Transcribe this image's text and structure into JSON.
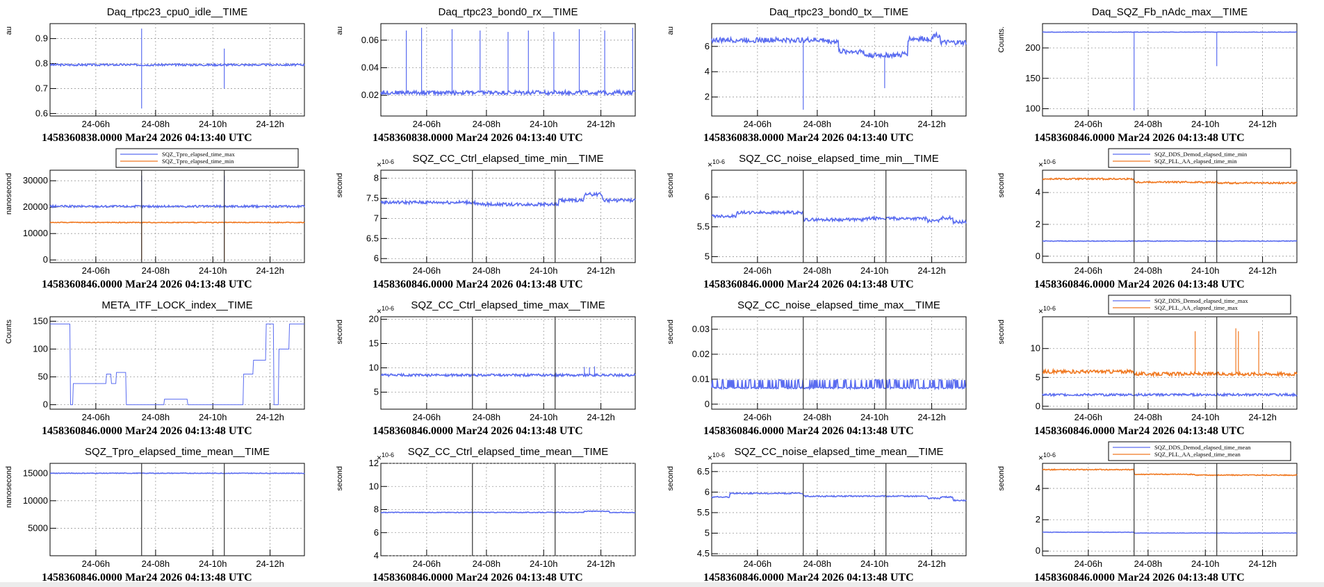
{
  "chart_data": [
    {
      "type": "line",
      "title": "Daq_rtpc23_cpu0_idle__TIME",
      "ylabel": "au",
      "footer": "1458360838.0000 Mar24 2026 04:13:40 UTC",
      "xticks": [
        "24-06h",
        "24-08h",
        "24-10h",
        "24-12h"
      ],
      "yticks": [
        "0.6",
        "0.7",
        "0.8",
        "0.9"
      ],
      "ylim": [
        0.59,
        0.96
      ],
      "exponent": "",
      "series": [
        {
          "color": "#5a6cf0",
          "base": 0.795,
          "noise": 0.004,
          "spikes": [
            [
              0.36,
              0.62
            ],
            [
              0.36,
              0.94
            ],
            [
              0.685,
              0.7
            ],
            [
              0.685,
              0.86
            ]
          ]
        }
      ]
    },
    {
      "type": "line",
      "title": "Daq_rtpc23_bond0_rx__TIME",
      "ylabel": "au",
      "footer": "1458360838.0000 Mar24 2026 04:13:40 UTC",
      "xticks": [
        "24-06h",
        "24-08h",
        "24-10h",
        "24-12h"
      ],
      "yticks": [
        "0.02",
        "0.04",
        "0.06"
      ],
      "ylim": [
        0.005,
        0.072
      ],
      "exponent": "",
      "series": [
        {
          "color": "#5a6cf0",
          "base": 0.022,
          "noise": 0.0015,
          "spikes": [
            [
              0.1,
              0.067
            ],
            [
              0.16,
              0.069
            ],
            [
              0.28,
              0.068
            ],
            [
              0.39,
              0.067
            ],
            [
              0.5,
              0.066
            ],
            [
              0.58,
              0.067
            ],
            [
              0.68,
              0.066
            ],
            [
              0.78,
              0.068
            ],
            [
              0.88,
              0.067
            ],
            [
              0.99,
              0.069
            ]
          ]
        }
      ]
    },
    {
      "type": "line",
      "title": "Daq_rtpc23_bond0_tx__TIME",
      "ylabel": "au",
      "footer": "1458360838.0000 Mar24 2026 04:13:40 UTC",
      "xticks": [
        "24-06h",
        "24-08h",
        "24-10h",
        "24-12h"
      ],
      "yticks": [
        "2",
        "4",
        "6"
      ],
      "ylim": [
        0.5,
        7.8
      ],
      "exponent": "",
      "series": [
        {
          "color": "#5a6cf0",
          "steps": [
            [
              0,
              6.5
            ],
            [
              0.45,
              6.4
            ],
            [
              0.5,
              5.6
            ],
            [
              0.6,
              5.3
            ],
            [
              0.75,
              5.4
            ],
            [
              0.77,
              6.6
            ],
            [
              0.87,
              6.9
            ],
            [
              0.9,
              6.3
            ]
          ],
          "noise": 0.2,
          "spikes": [
            [
              0.36,
              1.0
            ],
            [
              0.68,
              2.7
            ]
          ]
        }
      ]
    },
    {
      "type": "line",
      "title": "Daq_SQZ_Fb_nAdc_max__TIME",
      "ylabel": "Counts.",
      "footer": "1458360846.0000 Mar24 2026 04:13:48 UTC",
      "xticks": [
        "24-06h",
        "24-08h",
        "24-10h",
        "24-12h"
      ],
      "yticks": [
        "100",
        "150",
        "200"
      ],
      "ylim": [
        88,
        240
      ],
      "exponent": "",
      "series": [
        {
          "color": "#5a6cf0",
          "base": 226,
          "noise": 0.3,
          "spikes": [
            [
              0.36,
              97
            ],
            [
              0.685,
              170
            ]
          ]
        }
      ]
    },
    {
      "type": "line",
      "title": "",
      "ylabel": "nanosecond",
      "footer": "1458360846.0000 Mar24 2026 04:13:48 UTC",
      "xticks": [
        "24-06h",
        "24-08h",
        "24-10h",
        "24-12h"
      ],
      "yticks": [
        "0",
        "10000",
        "20000",
        "30000"
      ],
      "ylim": [
        -1000,
        34000
      ],
      "exponent": "",
      "legend": [
        "SQZ_Tpro_elapsed_time_max",
        "SQZ_Tpro_elapsed_time_min"
      ],
      "series": [
        {
          "name": "SQZ_Tpro_elapsed_time_max",
          "color": "#5a6cf0",
          "base": 20300,
          "noise": 400,
          "spikes": [
            [
              0.36,
              32000
            ],
            [
              0.685,
              32000
            ]
          ]
        },
        {
          "name": "SQZ_Tpro_elapsed_time_min",
          "color": "#f07820",
          "base": 14200,
          "noise": 150,
          "spikes": [
            [
              0.36,
              0
            ],
            [
              0.685,
              0
            ]
          ]
        }
      ],
      "vlines": [
        0.36,
        0.685
      ]
    },
    {
      "type": "line",
      "title": "SQZ_CC_Ctrl_elapsed_time_min__TIME",
      "ylabel": "second",
      "footer": "1458360846.0000 Mar24 2026 04:13:48 UTC",
      "xticks": [
        "24-06h",
        "24-08h",
        "24-10h",
        "24-12h"
      ],
      "yticks": [
        "6",
        "6.5",
        "7",
        "7.5",
        "8"
      ],
      "ylim": [
        5.9,
        8.2
      ],
      "exponent": "10-6",
      "series": [
        {
          "color": "#5a6cf0",
          "steps": [
            [
              0,
              7.4
            ],
            [
              0.37,
              7.35
            ],
            [
              0.6,
              7.35
            ],
            [
              0.7,
              7.45
            ],
            [
              0.8,
              7.6
            ],
            [
              0.87,
              7.45
            ]
          ],
          "noise": 0.04,
          "spikes": []
        }
      ],
      "vlines": [
        0.36,
        0.685
      ]
    },
    {
      "type": "line",
      "title": "SQZ_CC_noise_elapsed_time_min__TIME",
      "ylabel": "second",
      "footer": "1458360846.0000 Mar24 2026 04:13:48 UTC",
      "xticks": [
        "24-06h",
        "24-08h",
        "24-10h",
        "24-12h"
      ],
      "yticks": [
        "5",
        "5.5",
        "6"
      ],
      "ylim": [
        4.9,
        6.45
      ],
      "exponent": "10-6",
      "series": [
        {
          "color": "#5a6cf0",
          "steps": [
            [
              0,
              5.68
            ],
            [
              0.1,
              5.74
            ],
            [
              0.36,
              5.62
            ],
            [
              0.6,
              5.64
            ],
            [
              0.85,
              5.6
            ],
            [
              0.9,
              5.65
            ],
            [
              0.95,
              5.58
            ]
          ],
          "noise": 0.025,
          "spikes": []
        }
      ],
      "vlines": [
        0.36,
        0.685
      ]
    },
    {
      "type": "line",
      "title": "",
      "ylabel": "second",
      "footer": "1458360846.0000 Mar24 2026 04:13:48 UTC",
      "xticks": [
        "24-06h",
        "24-08h",
        "24-10h",
        "24-12h"
      ],
      "yticks": [
        "0",
        "2",
        "4"
      ],
      "ylim": [
        -0.4,
        5.4
      ],
      "exponent": "10-6",
      "legend": [
        "SQZ_DDS_Demod_elapsed_time_min",
        "SQZ_PLL_AA_elapsed_time_min"
      ],
      "series": [
        {
          "name": "SQZ_DDS_Demod_elapsed_time_min",
          "color": "#5a6cf0",
          "base": 0.95,
          "noise": 0.02,
          "spikes": []
        },
        {
          "name": "SQZ_PLL_AA_elapsed_time_min",
          "color": "#f07820",
          "steps": [
            [
              0,
              4.85
            ],
            [
              0.36,
              4.65
            ],
            [
              0.685,
              4.6
            ]
          ],
          "noise": 0.05,
          "spikes": []
        }
      ],
      "vlines": [
        0.36,
        0.685
      ]
    },
    {
      "type": "line",
      "title": "META_ITF_LOCK_index__TIME",
      "ylabel": "Counts",
      "footer": "1458360846.0000 Mar24 2026 04:13:48 UTC",
      "xticks": [
        "24-06h",
        "24-08h",
        "24-10h",
        "24-12h"
      ],
      "yticks": [
        "0",
        "50",
        "100",
        "150"
      ],
      "ylim": [
        -8,
        158
      ],
      "exponent": "",
      "series": [
        {
          "color": "#5a6cf0",
          "steps": [
            [
              0,
              145
            ],
            [
              0.08,
              0
            ],
            [
              0.09,
              38
            ],
            [
              0.15,
              38
            ],
            [
              0.2,
              38
            ],
            [
              0.22,
              55
            ],
            [
              0.24,
              38
            ],
            [
              0.26,
              58
            ],
            [
              0.3,
              0
            ],
            [
              0.45,
              10
            ],
            [
              0.54,
              0
            ],
            [
              0.72,
              0
            ],
            [
              0.76,
              55
            ],
            [
              0.8,
              80
            ],
            [
              0.85,
              145
            ],
            [
              0.88,
              0
            ],
            [
              0.9,
              100
            ],
            [
              0.94,
              145
            ]
          ],
          "noise": 0,
          "spikes": []
        }
      ]
    },
    {
      "type": "line",
      "title": "SQZ_CC_Ctrl_elapsed_time_max__TIME",
      "ylabel": "second",
      "footer": "1458360846.0000 Mar24 2026 04:13:48 UTC",
      "xticks": [
        "24-06h",
        "24-08h",
        "24-10h",
        "24-12h"
      ],
      "yticks": [
        "5",
        "10",
        "15",
        "20"
      ],
      "ylim": [
        1.5,
        20.5
      ],
      "exponent": "10-6",
      "series": [
        {
          "color": "#5a6cf0",
          "base": 8.5,
          "noise": 0.25,
          "spikes": [
            [
              0.8,
              10.2
            ],
            [
              0.82,
              10.1
            ],
            [
              0.84,
              10.3
            ]
          ]
        }
      ],
      "vlines": [
        0.36,
        0.685
      ]
    },
    {
      "type": "line",
      "title": "SQZ_CC_noise_elapsed_time_max__TIME",
      "ylabel": "second",
      "footer": "1458360846.0000 Mar24 2026 04:13:48 UTC",
      "xticks": [
        "24-06h",
        "24-08h",
        "24-10h",
        "24-12h"
      ],
      "yticks": [
        "0",
        "0.01",
        "0.02",
        "0.03"
      ],
      "ylim": [
        -0.002,
        0.035
      ],
      "exponent": "",
      "series": [
        {
          "color": "#5a6cf0",
          "base": 0.0065,
          "noise": 0.0003,
          "comb": 0.0097
        }
      ],
      "vlines": [
        0.36,
        0.685
      ]
    },
    {
      "type": "line",
      "title": "",
      "ylabel": "second",
      "footer": "1458360846.0000 Mar24 2026 04:13:48 UTC",
      "xticks": [
        "24-06h",
        "24-08h",
        "24-10h",
        "24-12h"
      ],
      "yticks": [
        "0",
        "5",
        "10"
      ],
      "ylim": [
        -0.5,
        15.5
      ],
      "exponent": "10-6",
      "legend": [
        "SQZ_DDS_Demod_elapsed_time_max",
        "SQZ_PLL_AA_elapsed_time_max"
      ],
      "series": [
        {
          "name": "SQZ_DDS_Demod_elapsed_time_max",
          "color": "#5a6cf0",
          "base": 2.0,
          "noise": 0.2,
          "spikes": []
        },
        {
          "name": "SQZ_PLL_AA_elapsed_time_max",
          "color": "#f07820",
          "steps": [
            [
              0,
              6.0
            ],
            [
              0.36,
              5.6
            ]
          ],
          "noise": 0.3,
          "spikes": [
            [
              0.6,
              13
            ],
            [
              0.76,
              13.5
            ],
            [
              0.77,
              13
            ],
            [
              0.85,
              13
            ]
          ]
        }
      ],
      "vlines": [
        0.36,
        0.685
      ]
    },
    {
      "type": "line",
      "title": "SQZ_Tpro_elapsed_time_mean__TIME",
      "ylabel": "nanosecond",
      "footer": "1458360846.0000 Mar24 2026 04:13:48 UTC",
      "xticks": [
        "24-06h",
        "24-08h",
        "24-10h",
        "24-12h"
      ],
      "yticks": [
        "5000",
        "10000",
        "15000"
      ],
      "ylim": [
        0,
        16800
      ],
      "exponent": "",
      "series": [
        {
          "color": "#5a6cf0",
          "base": 15000,
          "noise": 60,
          "spikes": []
        }
      ],
      "vlines": [
        0.36,
        0.685
      ]
    },
    {
      "type": "line",
      "title": "SQZ_CC_Ctrl_elapsed_time_mean__TIME",
      "ylabel": "second",
      "footer": "1458360846.0000 Mar24 2026 04:13:48 UTC",
      "xticks": [
        "24-06h",
        "24-08h",
        "24-10h",
        "24-12h"
      ],
      "yticks": [
        "4",
        "6",
        "8",
        "10",
        "12"
      ],
      "ylim": [
        4,
        12
      ],
      "exponent": "10-6",
      "series": [
        {
          "color": "#5a6cf0",
          "steps": [
            [
              0,
              7.75
            ],
            [
              0.8,
              7.85
            ],
            [
              0.9,
              7.75
            ]
          ],
          "noise": 0.03,
          "spikes": []
        }
      ],
      "vlines": [
        0.36,
        0.685
      ]
    },
    {
      "type": "line",
      "title": "SQZ_CC_noise_elapsed_time_mean__TIME",
      "ylabel": "second",
      "footer": "1458360846.0000 Mar24 2026 04:13:48 UTC",
      "xticks": [
        "24-06h",
        "24-08h",
        "24-10h",
        "24-12h"
      ],
      "yticks": [
        "4.5",
        "5",
        "5.5",
        "6",
        "6.5"
      ],
      "ylim": [
        4.45,
        6.7
      ],
      "exponent": "10-6",
      "series": [
        {
          "color": "#5a6cf0",
          "steps": [
            [
              0,
              5.88
            ],
            [
              0.07,
              5.97
            ],
            [
              0.36,
              5.9
            ],
            [
              0.85,
              5.85
            ],
            [
              0.9,
              5.88
            ],
            [
              0.95,
              5.8
            ]
          ],
          "noise": 0.015,
          "spikes": []
        }
      ],
      "vlines": [
        0.36,
        0.685
      ]
    },
    {
      "type": "line",
      "title": "",
      "ylabel": "second",
      "footer": "1458360846.0000 Mar24 2026 04:13:48 UTC",
      "xticks": [
        "24-06h",
        "24-08h",
        "24-10h",
        "24-12h"
      ],
      "yticks": [
        "0",
        "2",
        "4"
      ],
      "ylim": [
        -0.3,
        5.6
      ],
      "exponent": "10-6",
      "legend": [
        "SQZ_DDS_Demod_elapsed_time_mean",
        "SQZ_PLL_AA_elapsed_time_mean"
      ],
      "series": [
        {
          "name": "SQZ_DDS_Demod_elapsed_time_mean",
          "color": "#5a6cf0",
          "steps": [
            [
              0,
              1.2
            ],
            [
              0.36,
              1.15
            ]
          ],
          "noise": 0.01,
          "spikes": []
        },
        {
          "name": "SQZ_PLL_AA_elapsed_time_mean",
          "color": "#f07820",
          "steps": [
            [
              0,
              5.2
            ],
            [
              0.36,
              4.9
            ],
            [
              0.6,
              4.85
            ]
          ],
          "noise": 0.03,
          "spikes": []
        }
      ],
      "vlines": [
        0.36,
        0.685
      ]
    }
  ]
}
